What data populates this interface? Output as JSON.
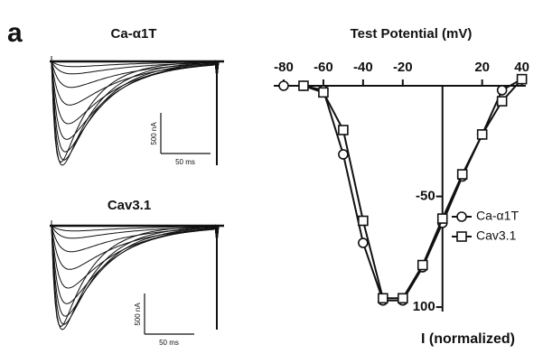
{
  "panel_label": "a",
  "traces": [
    {
      "title": "Ca-α1T",
      "scale_y": "500 nA",
      "scale_x": "50 ms"
    },
    {
      "title": "Cav3.1",
      "scale_y": "500 nA",
      "scale_x": "50 ms"
    }
  ],
  "chart_data": {
    "type": "line",
    "xlabel": "Test Potential (mV)",
    "ylabel": "I (normalized)",
    "x": [
      -80,
      -70,
      -60,
      -50,
      -40,
      -30,
      -20,
      -10,
      0,
      10,
      20,
      30,
      40
    ],
    "series": [
      {
        "name": "Ca-α1T",
        "marker": "circle",
        "color": "#111111",
        "values": [
          0,
          0,
          -2,
          -31,
          -71,
          -97,
          -97,
          -82,
          -62,
          -41,
          -22,
          -2,
          3
        ]
      },
      {
        "name": "Cav3.1",
        "marker": "square",
        "color": "#111111",
        "values": [
          null,
          0,
          -3,
          -20,
          -61,
          -96,
          -96,
          -81,
          -60,
          -40,
          -22,
          -7,
          3
        ]
      }
    ],
    "xlim": [
      -85,
      42
    ],
    "ylim": [
      -102,
      0
    ],
    "xticks": [
      -80,
      -60,
      -40,
      -20,
      20,
      40
    ],
    "yticks": [
      -50,
      {
        "value": -100,
        "label": "100"
      }
    ]
  }
}
